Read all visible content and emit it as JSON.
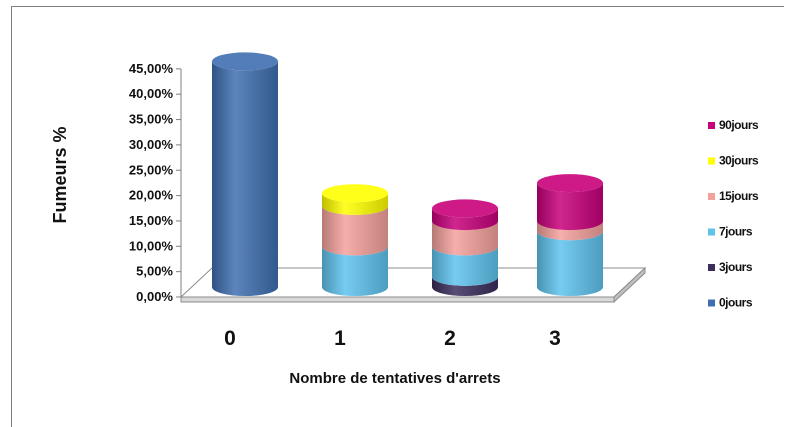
{
  "chart_data": {
    "type": "bar",
    "style": "3d-cylinder-stacked",
    "title": "",
    "xlabel": "Nombre de tentatives d'arrets",
    "ylabel": "Fumeurs %",
    "ylim": [
      0,
      45
    ],
    "yticks": [
      "0,00%",
      "5,00%",
      "10,00%",
      "15,00%",
      "20,00%",
      "25,00%",
      "30,00%",
      "35,00%",
      "40,00%",
      "45,00%"
    ],
    "categories": [
      "0",
      "1",
      "2",
      "3"
    ],
    "legend_position": "right",
    "series": [
      {
        "name": "0jours",
        "color": "#3f6fb0",
        "values": [
          44.5,
          0,
          0,
          0
        ]
      },
      {
        "name": "3jours",
        "color": "#3b2d5c",
        "values": [
          0,
          0,
          2.0,
          0
        ]
      },
      {
        "name": "7jours",
        "color": "#5fc3ee",
        "values": [
          0,
          8.0,
          6.0,
          11.0
        ]
      },
      {
        "name": "15jours",
        "color": "#f4a19c",
        "values": [
          0,
          8.0,
          5.0,
          2.0
        ]
      },
      {
        "name": "30jours",
        "color": "#ffff00",
        "values": [
          0,
          2.5,
          0,
          0
        ]
      },
      {
        "name": "90jours",
        "color": "#c8007a",
        "values": [
          0,
          0,
          2.5,
          7.5
        ]
      }
    ]
  }
}
